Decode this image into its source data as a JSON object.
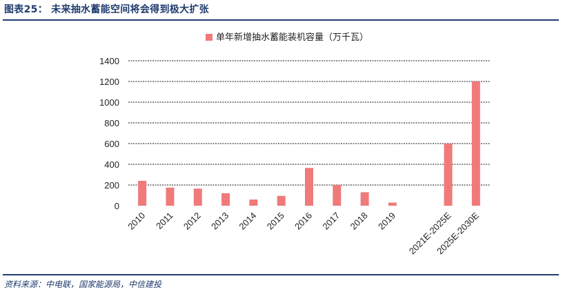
{
  "header": {
    "title": "图表25：  未来抽水蓄能空间将会得到极大扩张"
  },
  "footer": {
    "source": "资料来源：中电联，国家能源局，中信建投"
  },
  "chart_data": {
    "type": "bar",
    "title": "",
    "xlabel": "",
    "ylabel": "",
    "categories": [
      "2010",
      "2011",
      "2012",
      "2013",
      "2014",
      "2015",
      "2016",
      "2017",
      "2018",
      "2019",
      "",
      "2021E-2025E",
      "2025E-2030E"
    ],
    "series": [
      {
        "name": "单年新增抽水蓄能装机容量（万千瓦）",
        "values": [
          240,
          175,
          165,
          120,
          60,
          95,
          365,
          200,
          130,
          30,
          null,
          600,
          1200
        ],
        "color": "#f07a7a"
      }
    ],
    "ylim": [
      0,
      1400
    ],
    "yticks": [
      0,
      200,
      400,
      600,
      800,
      1000,
      1200,
      1400
    ],
    "grid": true,
    "legend_position": "top-center"
  }
}
